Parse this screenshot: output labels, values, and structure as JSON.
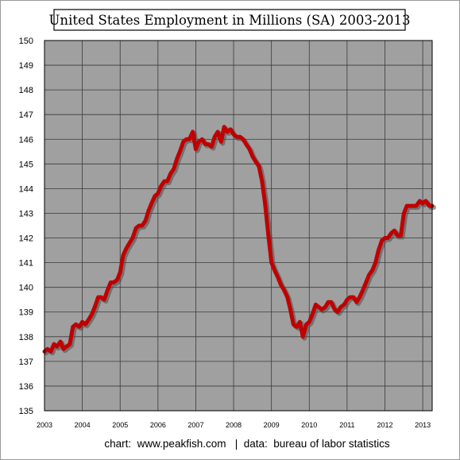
{
  "chart_data": {
    "type": "line",
    "title": "United States Employment in Millions (SA) 2003-2013",
    "credit": "chart:  www.peakfish.com   |  data:  bureau of labor statistics",
    "xlim": [
      2003,
      2013.25
    ],
    "ylim": [
      135,
      150
    ],
    "x_ticks": [
      2003,
      2004,
      2005,
      2006,
      2007,
      2008,
      2009,
      2010,
      2011,
      2012,
      2013
    ],
    "x_tick_labels": [
      "2003",
      "2004",
      "2005",
      "2006",
      "2007",
      "2008",
      "2009",
      "2010",
      "2011",
      "2012",
      "2013"
    ],
    "y_ticks": [
      135,
      136,
      137,
      138,
      139,
      140,
      141,
      142,
      143,
      144,
      145,
      146,
      147,
      148,
      149,
      150
    ],
    "y_tick_labels": [
      "135",
      "136",
      "137",
      "138",
      "139",
      "140",
      "141",
      "142",
      "143",
      "144",
      "145",
      "146",
      "147",
      "148",
      "149",
      "150"
    ],
    "grid": true,
    "legend": "none",
    "colors": {
      "plot_background": "#a0a0a0",
      "gridline": "#3a3a3a",
      "series_line": "#c00000",
      "series_shadow": "#4a4a4a",
      "frame": "#000000"
    },
    "series": [
      {
        "x": [
          2003.0,
          2003.08,
          2003.17,
          2003.25,
          2003.33,
          2003.42,
          2003.5,
          2003.58,
          2003.67,
          2003.75,
          2003.83,
          2003.92,
          2004.0,
          2004.08,
          2004.17,
          2004.25,
          2004.33,
          2004.42,
          2004.5,
          2004.58,
          2004.67,
          2004.75,
          2004.83,
          2004.92,
          2005.0,
          2005.08,
          2005.17,
          2005.25,
          2005.33,
          2005.42,
          2005.5,
          2005.58,
          2005.67,
          2005.75,
          2005.83,
          2005.92,
          2006.0,
          2006.08,
          2006.17,
          2006.25,
          2006.33,
          2006.42,
          2006.5,
          2006.58,
          2006.67,
          2006.75,
          2006.83,
          2006.92,
          2007.0,
          2007.08,
          2007.17,
          2007.25,
          2007.33,
          2007.42,
          2007.5,
          2007.58,
          2007.67,
          2007.75,
          2007.83,
          2007.92,
          2008.0,
          2008.08,
          2008.17,
          2008.25,
          2008.33,
          2008.42,
          2008.5,
          2008.58,
          2008.67,
          2008.75,
          2008.83,
          2008.92,
          2009.0,
          2009.08,
          2009.17,
          2009.25,
          2009.33,
          2009.42,
          2009.5,
          2009.58,
          2009.67,
          2009.75,
          2009.83,
          2009.92,
          2010.0,
          2010.08,
          2010.17,
          2010.25,
          2010.33,
          2010.42,
          2010.5,
          2010.58,
          2010.67,
          2010.75,
          2010.83,
          2010.92,
          2011.0,
          2011.08,
          2011.17,
          2011.25,
          2011.33,
          2011.42,
          2011.5,
          2011.58,
          2011.67,
          2011.75,
          2011.83,
          2011.92,
          2012.0,
          2012.08,
          2012.17,
          2012.25,
          2012.33,
          2012.42,
          2012.5,
          2012.58,
          2012.67,
          2012.75,
          2012.83,
          2012.92,
          2013.0,
          2013.08,
          2013.17,
          2013.25
        ],
        "values": [
          137.4,
          137.5,
          137.4,
          137.7,
          137.6,
          137.8,
          137.5,
          137.6,
          137.7,
          138.4,
          138.5,
          138.4,
          138.6,
          138.5,
          138.7,
          138.9,
          139.2,
          139.6,
          139.6,
          139.5,
          139.9,
          140.2,
          140.2,
          140.3,
          140.6,
          141.3,
          141.6,
          141.8,
          142.0,
          142.4,
          142.5,
          142.5,
          142.7,
          143.1,
          143.4,
          143.7,
          143.8,
          144.1,
          144.3,
          144.3,
          144.6,
          144.8,
          145.2,
          145.5,
          145.9,
          146.0,
          146.0,
          146.3,
          145.6,
          145.9,
          146.0,
          145.8,
          145.8,
          145.7,
          146.1,
          146.3,
          145.9,
          146.5,
          146.3,
          146.4,
          146.2,
          146.1,
          146.1,
          146.0,
          145.8,
          145.6,
          145.3,
          145.1,
          144.9,
          144.3,
          143.4,
          142.1,
          141.0,
          140.7,
          140.4,
          140.1,
          139.9,
          139.6,
          139.1,
          138.5,
          138.4,
          138.6,
          138.0,
          138.5,
          138.6,
          138.9,
          139.3,
          139.2,
          139.1,
          139.2,
          139.4,
          139.4,
          139.1,
          139.0,
          139.2,
          139.3,
          139.5,
          139.6,
          139.6,
          139.4,
          139.6,
          139.9,
          140.2,
          140.5,
          140.7,
          141.0,
          141.5,
          141.9,
          142.0,
          142.0,
          142.2,
          142.3,
          142.1,
          142.1,
          143.0,
          143.3,
          143.3,
          143.3,
          143.3,
          143.5,
          143.4,
          143.5,
          143.3,
          143.3
        ]
      }
    ]
  }
}
